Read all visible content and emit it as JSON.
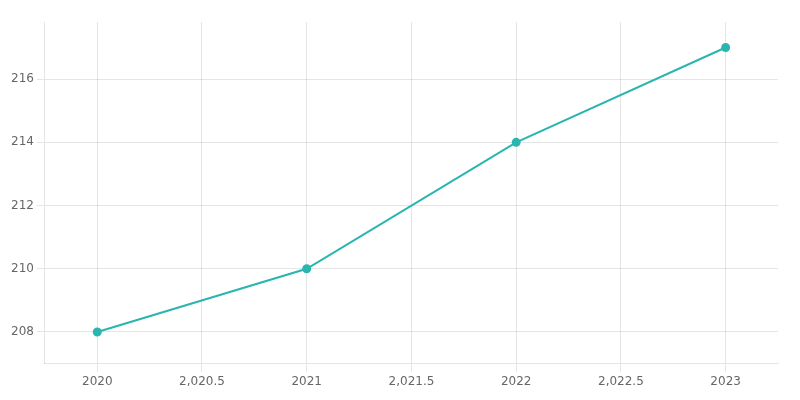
{
  "chart_data": {
    "type": "line",
    "x": [
      2020,
      2021,
      2022,
      2023
    ],
    "values": [
      208,
      210,
      214,
      217
    ],
    "color": "#2ab5b0",
    "marker": "circle",
    "xlim": [
      2019.75,
      2023.25
    ],
    "ylim": [
      207.0,
      217.8
    ],
    "xticks": [
      2020,
      {
        "value": 2020.5,
        "label": "2,020.5"
      },
      2021,
      {
        "value": 2021.5,
        "label": "2,021.5"
      },
      2022,
      {
        "value": 2022.5,
        "label": "2,022.5"
      },
      2023
    ],
    "yticks": [
      208,
      210,
      212,
      214,
      216
    ],
    "grid": true
  }
}
